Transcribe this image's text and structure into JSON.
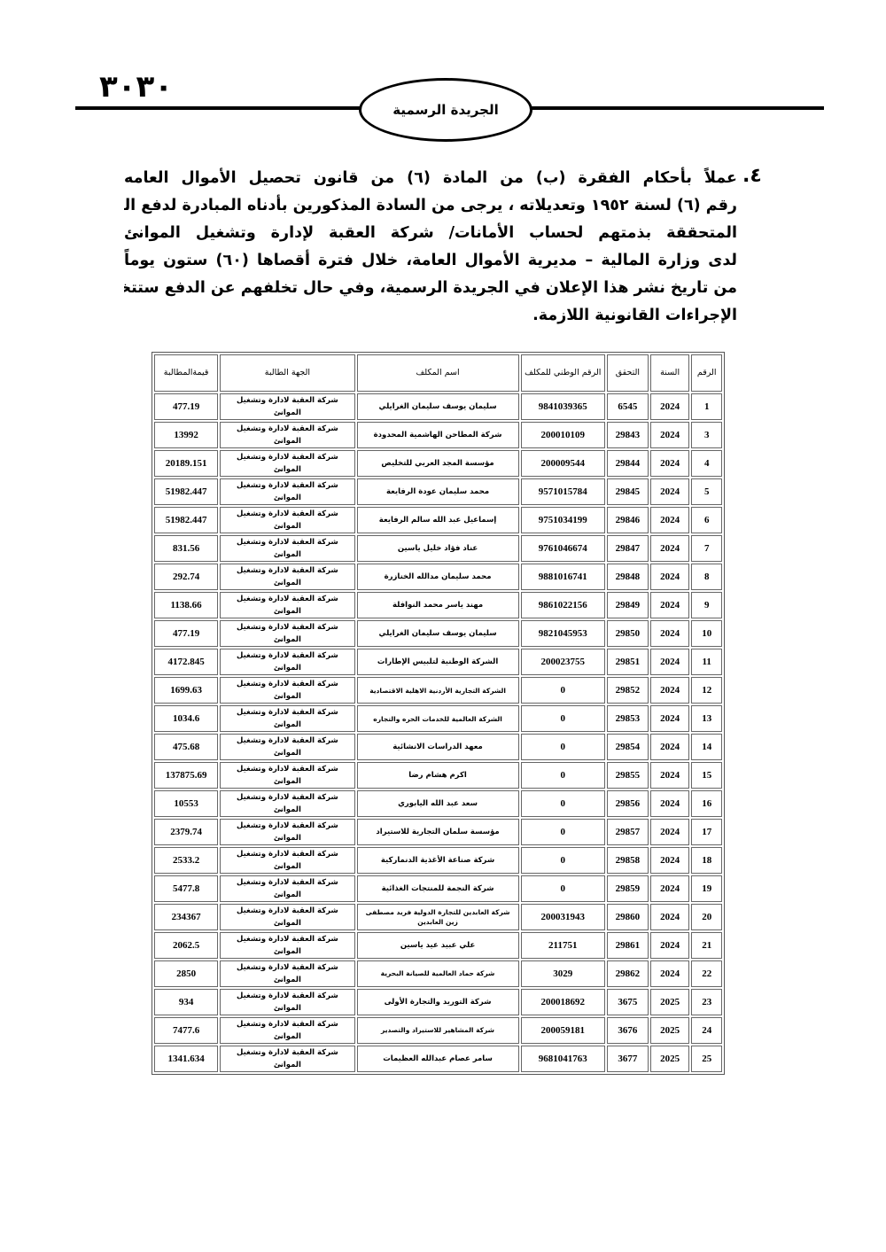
{
  "header": {
    "page_number": "٣٠٣٠",
    "gazette_title": "الجريدة الرسمية"
  },
  "notice": {
    "item_number": "٤.",
    "lines": [
      "عملاً بأحكام الفقرة (ب) من المادة (٦) من قانون تحصيل الأموال العامه",
      "رقم (٦) لسنة ١٩٥٢ وتعديلاته ، يرجى من السادة المذكورين بأدناه المبادرة لدفع المبالغ",
      "المتحققة بذمتهم لحساب الأمانات/ شركة العقبة لإدارة وتشغيل الموانئ",
      "لدى وزارة المالية – مديرية الأموال العامة، خلال فترة أقصاها (٦٠) ستون يوماً",
      "من تاريخ نشر هذا الإعلان في الجريدة الرسمية، وفي حال تخلفهم عن الدفع ستتخذ بحقهم",
      "الإجراءات القانونية اللازمة."
    ]
  },
  "table": {
    "headers": [
      "الرقم",
      "السنة",
      "التحقق",
      "الرقم الوطني للمكلف",
      "اسم المكلف",
      "الجهة الطالبة",
      "قيمةالمطالبة"
    ],
    "rows": [
      [
        "1",
        "2024",
        "6545",
        "9841039365",
        "سليمان يوسف سليمان الغرايلي",
        "شركة العقبة لادارة وتشغيل الموانئ",
        "477.19"
      ],
      [
        "3",
        "2024",
        "29843",
        "200010109",
        "شركة المطاحن الهاشمية المحدودة",
        "شركة العقبة لادارة وتشغيل الموانئ",
        "13992"
      ],
      [
        "4",
        "2024",
        "29844",
        "200009544",
        "مؤسسة المجد العربي للتخليص",
        "شركة العقبة لادارة وتشغيل الموانئ",
        "20189.151"
      ],
      [
        "5",
        "2024",
        "29845",
        "9571015784",
        "محمد سليمان عودة الرفايعة",
        "شركة العقبة لادارة وتشغيل الموانئ",
        "51982.447"
      ],
      [
        "6",
        "2024",
        "29846",
        "9751034199",
        "إسماعيل عبد الله سالم الرفايعة",
        "شركة العقبة لادارة وتشغيل الموانئ",
        "51982.447"
      ],
      [
        "7",
        "2024",
        "29847",
        "9761046674",
        "عناد فؤاد خليل ياسين",
        "شركة العقبة لادارة وتشغيل الموانئ",
        "831.56"
      ],
      [
        "8",
        "2024",
        "29848",
        "9881016741",
        "محمد سليمان مدالله الخنازرة",
        "شركة العقبة لادارة وتشغيل الموانئ",
        "292.74"
      ],
      [
        "9",
        "2024",
        "29849",
        "9861022156",
        "مهند ياسر محمد النوافلة",
        "شركة العقبة لادارة وتشغيل الموانئ",
        "1138.66"
      ],
      [
        "10",
        "2024",
        "29850",
        "9821045953",
        "سليمان يوسف سليمان الغرايلي",
        "شركة العقبة لادارة وتشغيل الموانئ",
        "477.19"
      ],
      [
        "11",
        "2024",
        "29851",
        "200023755",
        "الشركة الوطنية لتلبيس الإطارات",
        "شركة العقبة لادارة وتشغيل الموانئ",
        "4172.845"
      ],
      [
        "12",
        "2024",
        "29852",
        "0",
        "الشركة التجارية الأردنية الاهلية الاقتصادية",
        "شركة العقبة لادارة وتشغيل الموانئ",
        "1699.63"
      ],
      [
        "13",
        "2024",
        "29853",
        "0",
        "الشركة العالمية للخدمات الحره والتجاره",
        "شركة العقبة لادارة وتشغيل الموانئ",
        "1034.6"
      ],
      [
        "14",
        "2024",
        "29854",
        "0",
        "معهد الدراسات الانشائية",
        "شركة العقبة لادارة وتشغيل الموانئ",
        "475.68"
      ],
      [
        "15",
        "2024",
        "29855",
        "0",
        "اكرم هشام رضا",
        "شركة العقبة لادارة وتشغيل الموانئ",
        "137875.69"
      ],
      [
        "16",
        "2024",
        "29856",
        "0",
        "سعد عبد الله اليابوري",
        "شركة العقبة لادارة وتشغيل الموانئ",
        "10553"
      ],
      [
        "17",
        "2024",
        "29857",
        "0",
        "مؤسسة سلمان التجارية للاستيراد",
        "شركة العقبة لادارة وتشغيل الموانئ",
        "2379.74"
      ],
      [
        "18",
        "2024",
        "29858",
        "0",
        "شركة صناعة الأغذية الدنماركية",
        "شركة العقبة لادارة وتشغيل الموانئ",
        "2533.2"
      ],
      [
        "19",
        "2024",
        "29859",
        "0",
        "شركة النجمة للمنتجات الغذائية",
        "شركة العقبة لادارة وتشغيل الموانئ",
        "5477.8"
      ],
      [
        "20",
        "2024",
        "29860",
        "200031943",
        "شركة العابدين للتجارة الدولية فريد مصطفى زين العابدين",
        "شركة العقبة لادارة وتشغيل الموانئ",
        "234367"
      ],
      [
        "21",
        "2024",
        "29861",
        "211751",
        "علي عبيد عيد ياسين",
        "شركة العقبة لادارة وتشغيل الموانئ",
        "2062.5"
      ],
      [
        "22",
        "2024",
        "29862",
        "3029",
        "شركة حماد العالمية للصيانة البحرية",
        "شركة العقبة لادارة وتشغيل الموانئ",
        "2850"
      ],
      [
        "23",
        "2025",
        "3675",
        "200018692",
        "شركة التوريد والتجارة الأولى",
        "شركة العقبة لادارة وتشغيل الموانئ",
        "934"
      ],
      [
        "24",
        "2025",
        "3676",
        "200059181",
        "شركة المشاهير للاستيراد والتصدير",
        "شركة العقبة لادارة وتشغيل الموانئ",
        "7477.6"
      ],
      [
        "25",
        "2025",
        "3677",
        "9681041763",
        "سامر عصام عبدالله العظيمات",
        "شركة العقبة لادارة وتشغيل الموانئ",
        "1341.634"
      ]
    ]
  }
}
